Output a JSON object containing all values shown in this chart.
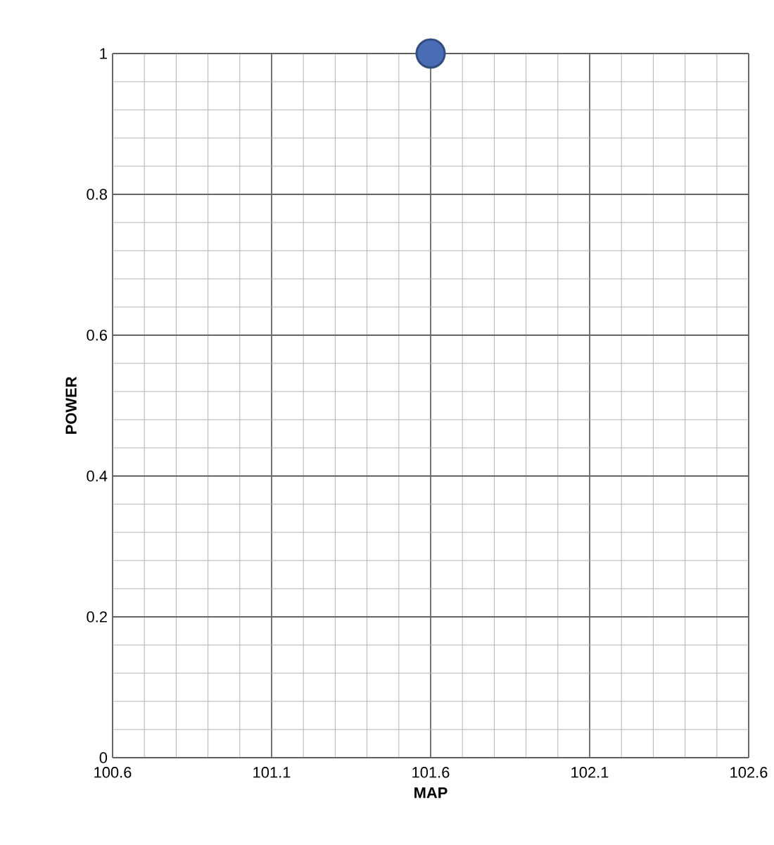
{
  "chart_data": {
    "type": "scatter",
    "xlabel": "MAP",
    "ylabel": "POWER",
    "x": [
      101.6
    ],
    "values": [
      1
    ],
    "color": "#4a6cb5",
    "xlim": [
      100.6,
      102.6
    ],
    "xticks": [
      100.6,
      101.1,
      101.6,
      102.1,
      102.6
    ],
    "ylim": [
      0,
      1
    ],
    "yticks": [
      0,
      0.2,
      0.4,
      0.6,
      0.8,
      1
    ],
    "grid": true
  }
}
